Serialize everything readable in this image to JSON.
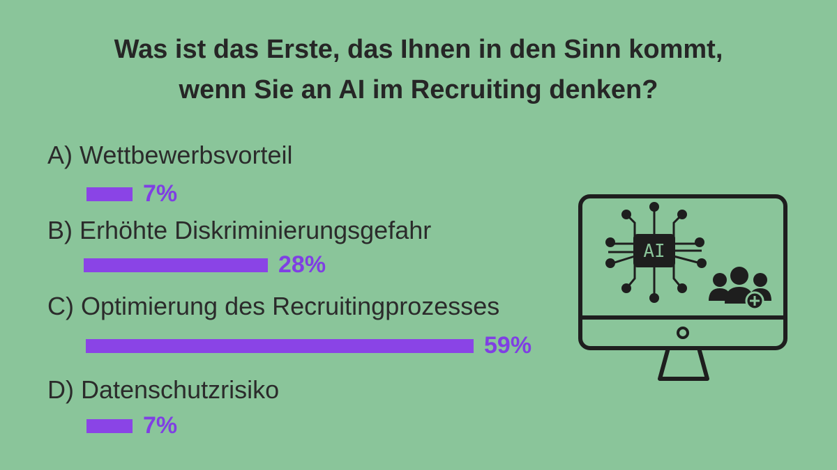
{
  "title": {
    "line1": "Was ist das Erste, das Ihnen in den Sinn kommt,",
    "line2": "wenn Sie an AI im Recruiting denken?"
  },
  "colors": {
    "background": "#8ac59a",
    "bar": "#8a44e6",
    "percent_text": "#7f3fe3",
    "icon": "#1e1e1e"
  },
  "illustration": {
    "icon": "computer-monitor-ai-chip-people-add-icon",
    "chip_text": "AI"
  },
  "chart_data": {
    "type": "bar",
    "orientation": "horizontal",
    "title": "Was ist das Erste, das Ihnen in den Sinn kommt, wenn Sie an AI im Recruiting denken?",
    "categories": [
      "A) Wettbewerbsvorteil",
      "B) Erhöhte Diskriminierungsgefahr",
      "C) Optimierung des Recruitingprozesses",
      "D) Datenschutzrisiko"
    ],
    "values": [
      7,
      28,
      59,
      7
    ],
    "value_labels": [
      "7%",
      "28%",
      "59%",
      "7%"
    ],
    "unit": "%",
    "xlim": [
      0,
      59
    ],
    "grid": false,
    "legend": "none"
  }
}
